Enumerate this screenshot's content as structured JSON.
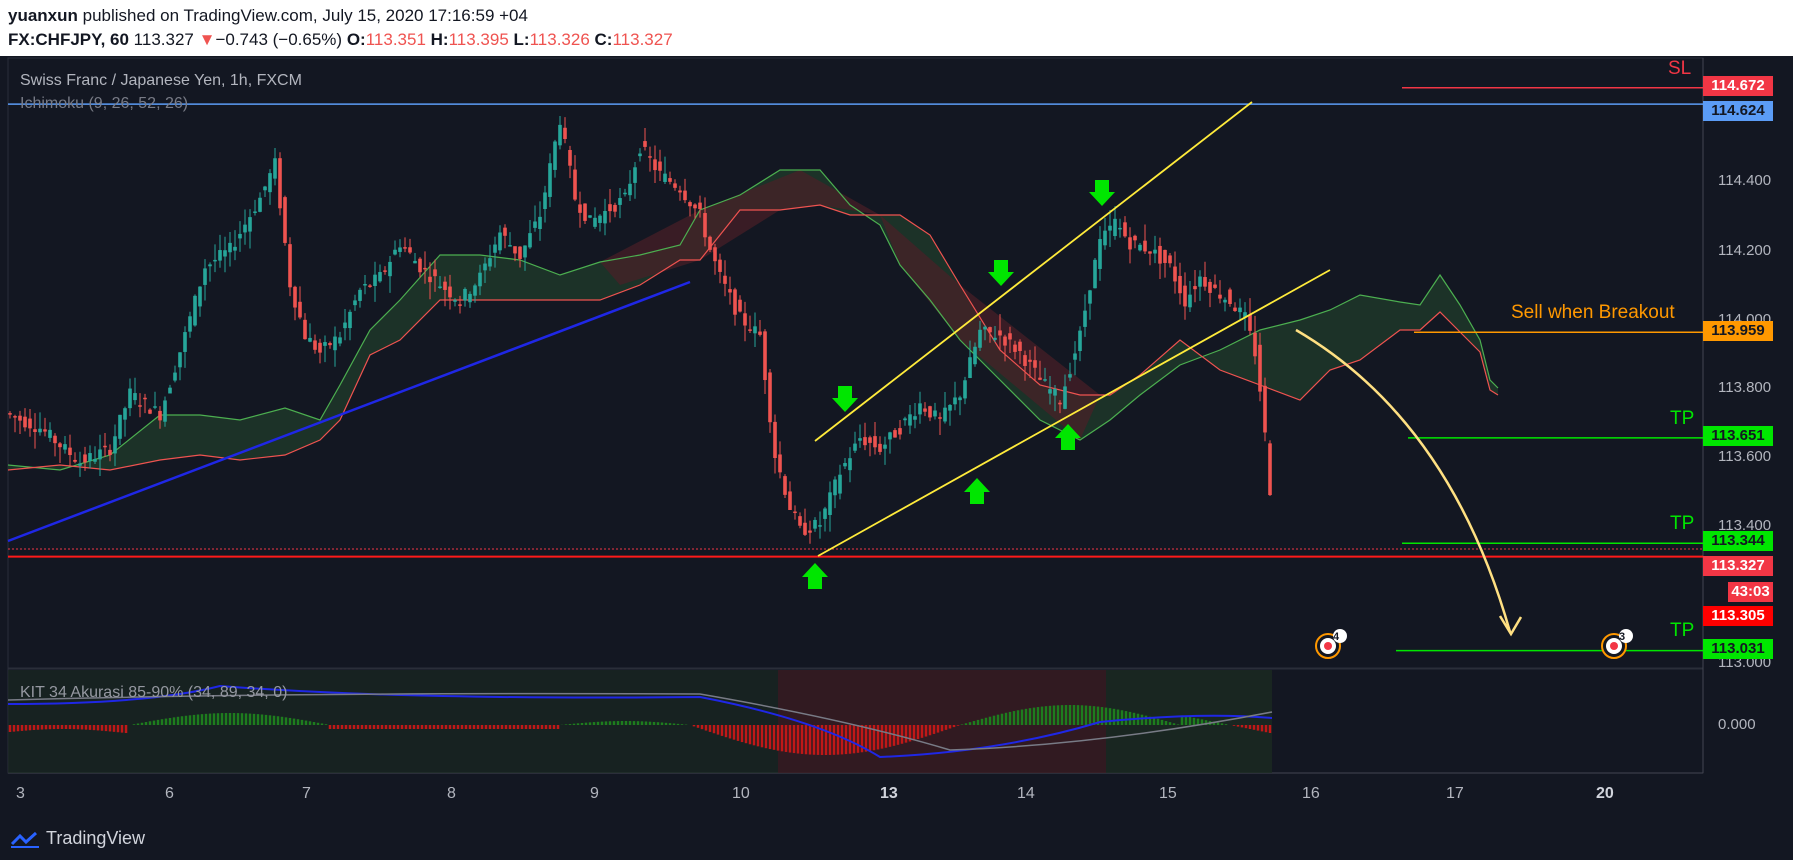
{
  "header": {
    "author": "yuanxun",
    "published": "published on TradingView.com, July 15, 2020 17:16:59 +04",
    "symbol": "FX:CHFJPY, 60",
    "last": "113.327",
    "change_arrow": "▼",
    "change": "−0.743 (−0.65%)",
    "o_label": "O:",
    "o_value": "113.351",
    "h_label": "H:",
    "h_value": "113.395",
    "l_label": "L:",
    "l_value": "113.326",
    "c_label": "C:",
    "c_value": "113.327"
  },
  "chart": {
    "title": "Swiss Franc / Japanese Yen, 1h, FXCM",
    "indicator": "Ichimoku (9, 26, 52, 26)",
    "oscillator": "KIT 34 Akurasi 85-90% (34, 89, 34, 0)"
  },
  "annotations": {
    "sl": "SL",
    "sell": "Sell when Breakout",
    "tp1": "TP",
    "tp2": "TP",
    "tp3": "TP"
  },
  "price_tags": [
    {
      "value": "114.672",
      "bg": "#f23645",
      "fg": "#ffffff"
    },
    {
      "value": "114.624",
      "bg": "#5b9cf6",
      "fg": "#131722"
    },
    {
      "value": "113.959",
      "bg": "#ff9800",
      "fg": "#131722"
    },
    {
      "value": "113.651",
      "bg": "#00e600",
      "fg": "#131722"
    },
    {
      "value": "113.344",
      "bg": "#00e600",
      "fg": "#131722"
    },
    {
      "value": "113.327",
      "bg": "#f23645",
      "fg": "#ffffff"
    },
    {
      "value": "43:03",
      "bg": "#f23645",
      "fg": "#ffffff"
    },
    {
      "value": "113.305",
      "bg": "#ff0000",
      "fg": "#ffffff"
    },
    {
      "value": "113.031",
      "bg": "#00e600",
      "fg": "#131722"
    }
  ],
  "y_axis_labels": [
    "114.400",
    "114.200",
    "114.000",
    "113.800",
    "113.600",
    "113.400",
    "113.000"
  ],
  "oscillator_axis_label": "0.000",
  "time_labels": [
    "3",
    "6",
    "7",
    "8",
    "9",
    "10",
    "13",
    "14",
    "15",
    "16",
    "17",
    "20"
  ],
  "event_badges": [
    "4",
    "3"
  ],
  "footer": {
    "brand": "TradingView"
  },
  "chart_data": {
    "type": "candlestick",
    "symbol": "CHFJPY",
    "interval": "1h",
    "ylim": [
      113.0,
      114.72
    ],
    "x": [
      "3",
      "6",
      "7",
      "8",
      "9",
      "10",
      "13",
      "14",
      "15",
      "16",
      "17",
      "20"
    ],
    "levels": [
      {
        "name": "SL",
        "value": 114.672,
        "color": "#f23645"
      },
      {
        "value": 114.624,
        "color": "#5b9cf6"
      },
      {
        "name": "Sell when Breakout",
        "value": 113.959,
        "color": "#ff9800"
      },
      {
        "name": "TP",
        "value": 113.651,
        "color": "#00e600"
      },
      {
        "name": "TP",
        "value": 113.344,
        "color": "#00e600"
      },
      {
        "value": 113.327,
        "color": "#f23645"
      },
      {
        "value": 113.305,
        "color": "#ff0000"
      },
      {
        "name": "TP",
        "value": 113.031,
        "color": "#00e600"
      }
    ],
    "last_price": 113.327,
    "up_color": "#26a69a",
    "down_color": "#ef5350"
  }
}
